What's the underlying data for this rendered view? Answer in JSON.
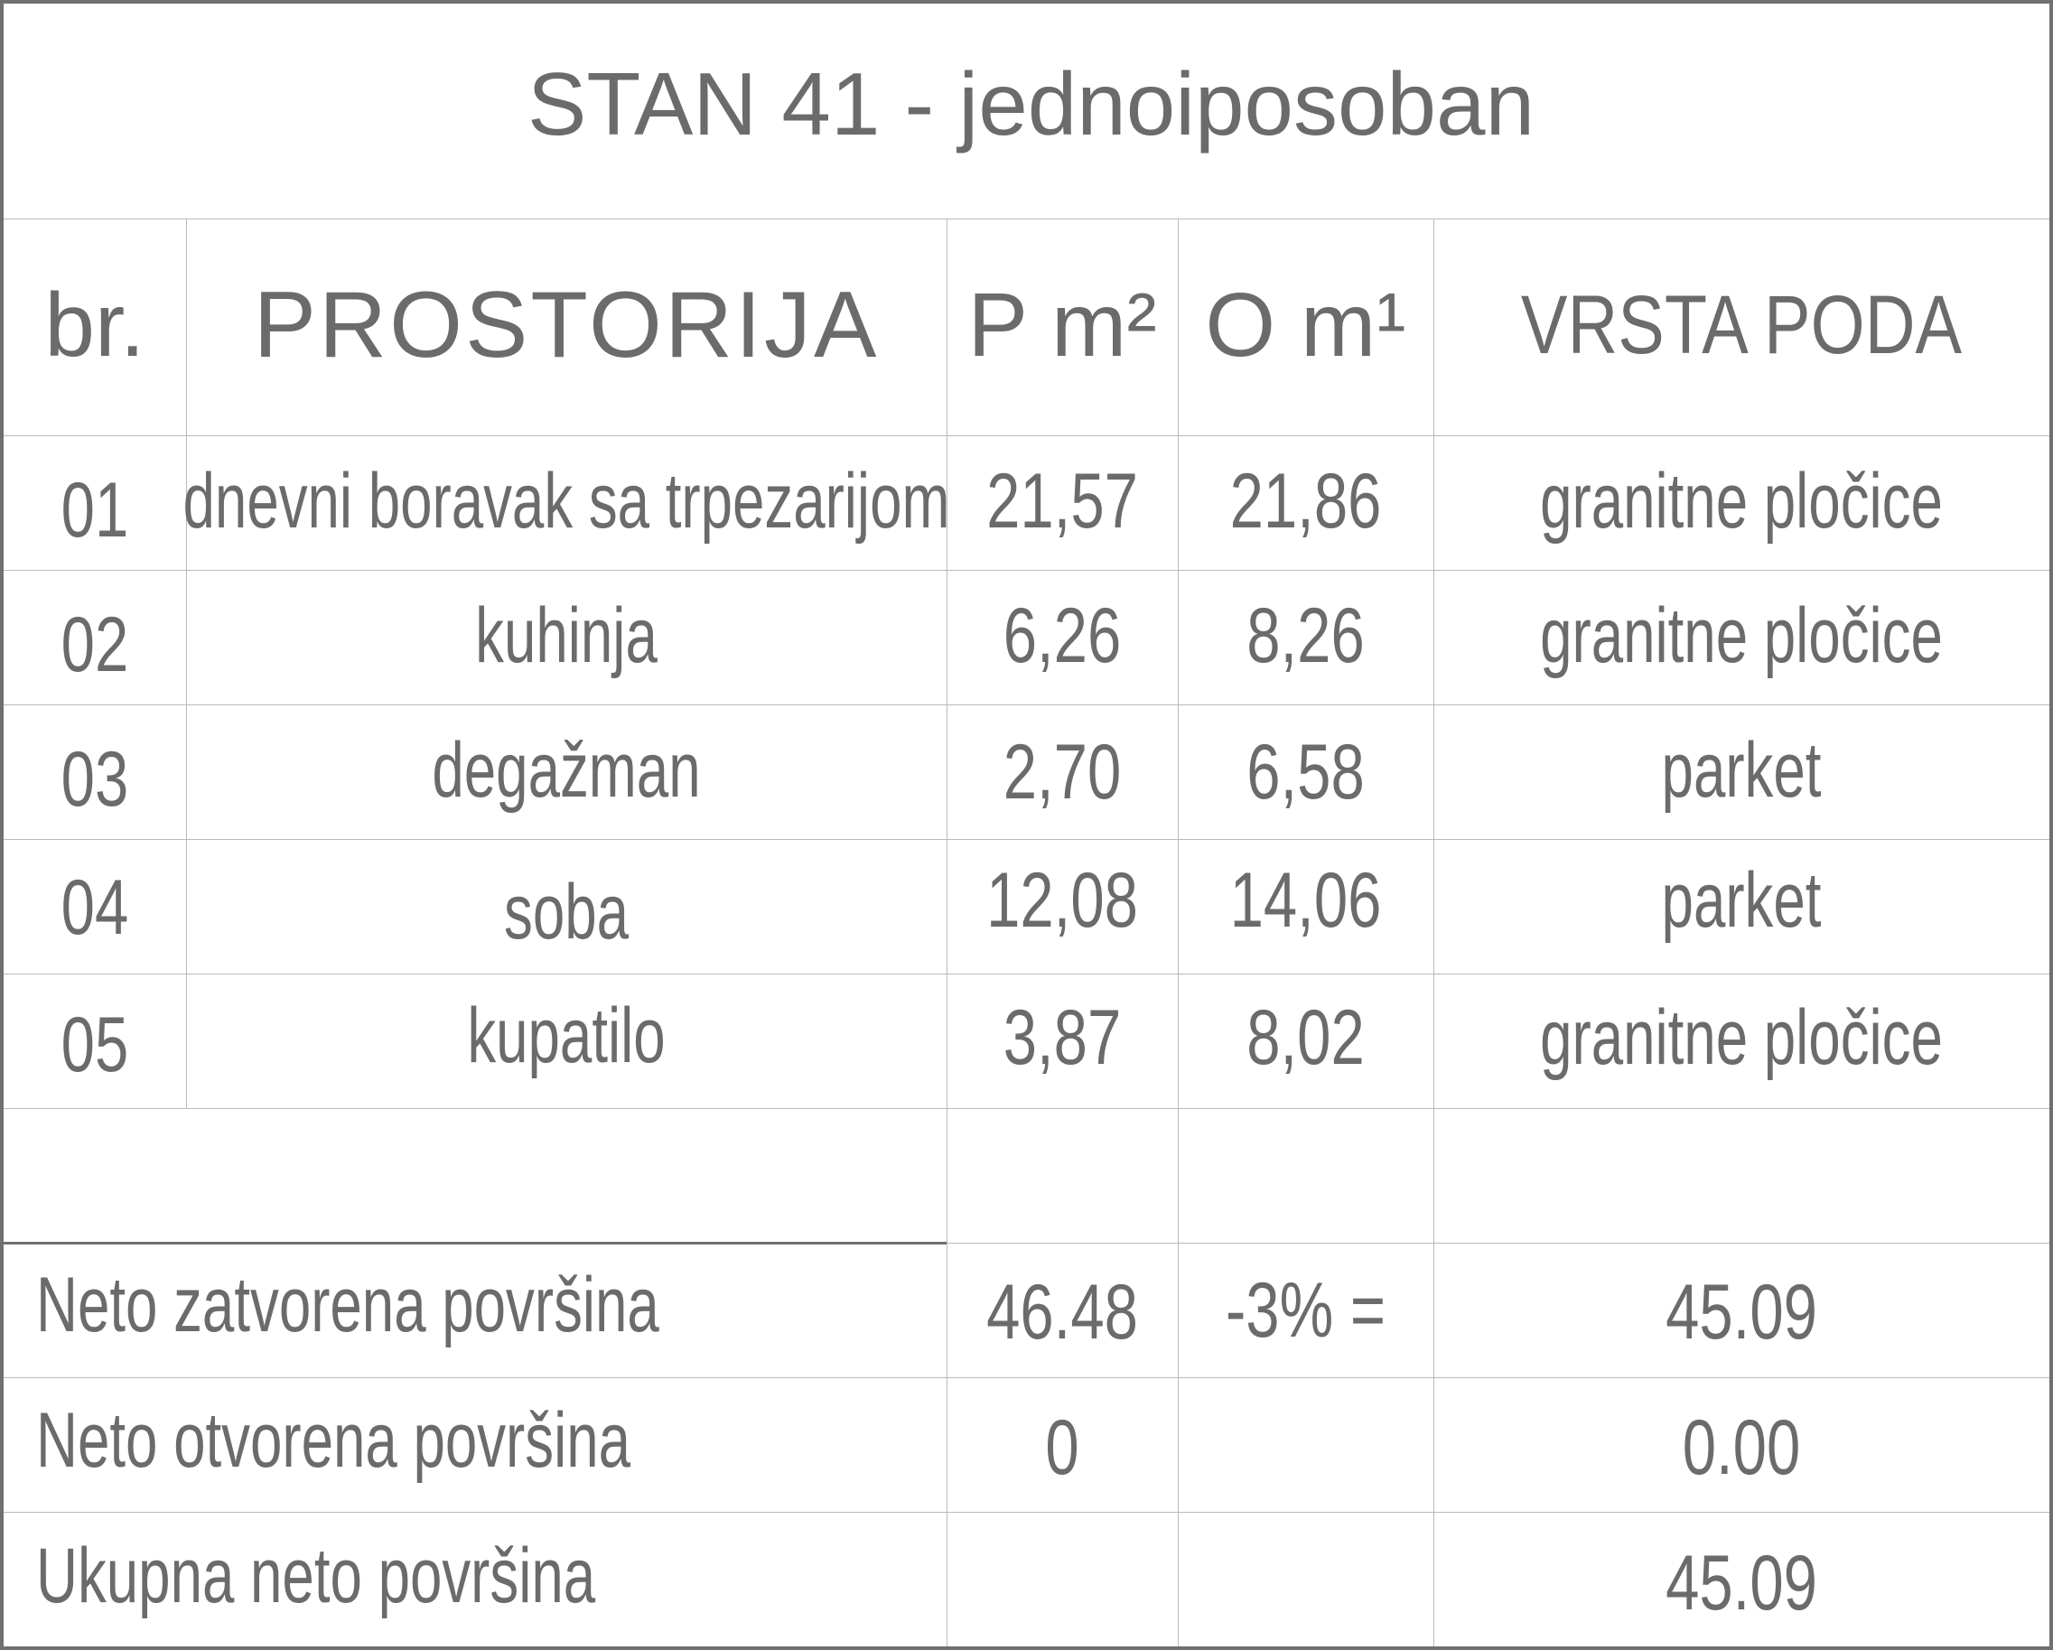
{
  "title": "STAN 41 - jednoiposoban",
  "columns": {
    "no": "br.",
    "room": "PROSTORIJA",
    "area": "P m²",
    "perimeter": "O m¹",
    "floor": "VRSTA PODA"
  },
  "rows": [
    {
      "no": "01",
      "room": "dnevni boravak sa trpezarijom",
      "area": "21,57",
      "perimeter": "21,86",
      "floor": "granitne pločice"
    },
    {
      "no": "02",
      "room": "kuhinja",
      "area": "6,26",
      "perimeter": "8,26",
      "floor": "granitne pločice"
    },
    {
      "no": "03",
      "room": "degažman",
      "area": "2,70",
      "perimeter": "6,58",
      "floor": "parket"
    },
    {
      "no": "04",
      "room": "soba",
      "area": "12,08",
      "perimeter": "14,06",
      "floor": "parket"
    },
    {
      "no": "05",
      "room": "kupatilo",
      "area": "3,87",
      "perimeter": "8,02",
      "floor": "granitne pločice"
    }
  ],
  "summary": [
    {
      "label": "Neto zatvorena površina",
      "area": "46.48",
      "factor": "-3% =",
      "total": "45.09"
    },
    {
      "label": "Neto otvorena površina",
      "area": "0",
      "factor": "",
      "total": "0.00"
    },
    {
      "label": "Ukupna neto površina",
      "area": "",
      "factor": "",
      "total": "45.09"
    }
  ]
}
